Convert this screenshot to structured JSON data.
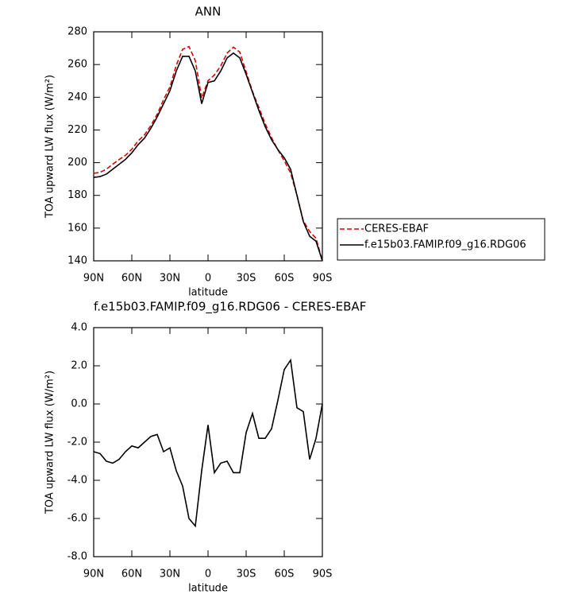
{
  "chart_data": [
    {
      "type": "line",
      "title": "ANN",
      "xlabel": "latitude",
      "ylabel": "TOA upward LW flux (W/m²)",
      "x": [
        90,
        85,
        80,
        75,
        70,
        65,
        60,
        55,
        50,
        45,
        40,
        35,
        30,
        25,
        20,
        15,
        10,
        5,
        0,
        -5,
        -10,
        -15,
        -20,
        -25,
        -30,
        -35,
        -40,
        -45,
        -50,
        -55,
        -60,
        -65,
        -70,
        -75,
        -80,
        -85,
        -90
      ],
      "xlim": [
        90,
        -90
      ],
      "xticks": [
        {
          "value": 90,
          "label": "90N"
        },
        {
          "value": 60,
          "label": "60N"
        },
        {
          "value": 30,
          "label": "30N"
        },
        0,
        {
          "value": -30,
          "label": "30S"
        },
        {
          "value": -60,
          "label": "60S"
        },
        {
          "value": -90,
          "label": "90S"
        }
      ],
      "ylim": [
        140,
        280
      ],
      "yticks": [
        140,
        160,
        180,
        200,
        220,
        240,
        260,
        280
      ],
      "series": [
        {
          "name": "CERES-EBAF",
          "color": "#e00000",
          "line_style": "dashed",
          "values": [
            193.5,
            194.1,
            196,
            199.1,
            201.9,
            204.5,
            208.2,
            213.3,
            217,
            222.7,
            229.6,
            238.5,
            246.3,
            259.5,
            269.3,
            271,
            262.4,
            239.5,
            250.1,
            253.6,
            259.1,
            267,
            270.6,
            267.6,
            255.5,
            243.5,
            233.8,
            223.8,
            215.3,
            207.8,
            201.2,
            193.7,
            180.2,
            164.4,
            157.9,
            153.8,
            140
          ]
        },
        {
          "name": "f.e15b03.FAMIP.f09_g16.RDG06",
          "color": "#000000",
          "line_style": "solid",
          "values": [
            191,
            191.5,
            193,
            196,
            199,
            202,
            206,
            211,
            215,
            221,
            228,
            236,
            244,
            256,
            265,
            265,
            256,
            236,
            249,
            250,
            256,
            264,
            267,
            264,
            254,
            243,
            232,
            222,
            214,
            208,
            203,
            196,
            180,
            164,
            155,
            152,
            140
          ]
        }
      ]
    },
    {
      "type": "line",
      "title": "f.e15b03.FAMIP.f09_g16.RDG06 - CERES-EBAF",
      "xlabel": "latitude",
      "ylabel": "TOA upward LW flux (W/m²)",
      "x": [
        90,
        85,
        80,
        75,
        70,
        65,
        60,
        55,
        50,
        45,
        40,
        35,
        30,
        25,
        20,
        15,
        10,
        5,
        0,
        -5,
        -10,
        -15,
        -20,
        -25,
        -30,
        -35,
        -40,
        -45,
        -50,
        -55,
        -60,
        -65,
        -70,
        -75,
        -80,
        -85,
        -90
      ],
      "xlim": [
        90,
        -90
      ],
      "xticks": [
        {
          "value": 90,
          "label": "90N"
        },
        {
          "value": 60,
          "label": "60N"
        },
        {
          "value": 30,
          "label": "30N"
        },
        0,
        {
          "value": -30,
          "label": "30S"
        },
        {
          "value": -60,
          "label": "60S"
        },
        {
          "value": -90,
          "label": "90S"
        }
      ],
      "ylim": [
        -8,
        4
      ],
      "yticks": [
        {
          "value": -8,
          "label": "-8.0"
        },
        {
          "value": -6,
          "label": "-6.0"
        },
        {
          "value": -4,
          "label": "-4.0"
        },
        {
          "value": -2,
          "label": "-2.0"
        },
        {
          "value": 0,
          "label": "0.0"
        },
        {
          "value": 2,
          "label": "2.0"
        },
        {
          "value": 4,
          "label": "4.0"
        }
      ],
      "series": [
        {
          "color": "#000000",
          "line_style": "solid",
          "values": [
            -2.5,
            -2.6,
            -3.0,
            -3.1,
            -2.9,
            -2.5,
            -2.2,
            -2.3,
            -2.0,
            -1.7,
            -1.6,
            -2.5,
            -2.3,
            -3.5,
            -4.3,
            -6.0,
            -6.4,
            -3.5,
            -1.1,
            -3.6,
            -3.1,
            -3.0,
            -3.6,
            -3.6,
            -1.5,
            -0.5,
            -1.8,
            -1.8,
            -1.3,
            0.2,
            1.8,
            2.3,
            -0.2,
            -0.4,
            -2.9,
            -1.8,
            0.0
          ]
        }
      ]
    }
  ]
}
